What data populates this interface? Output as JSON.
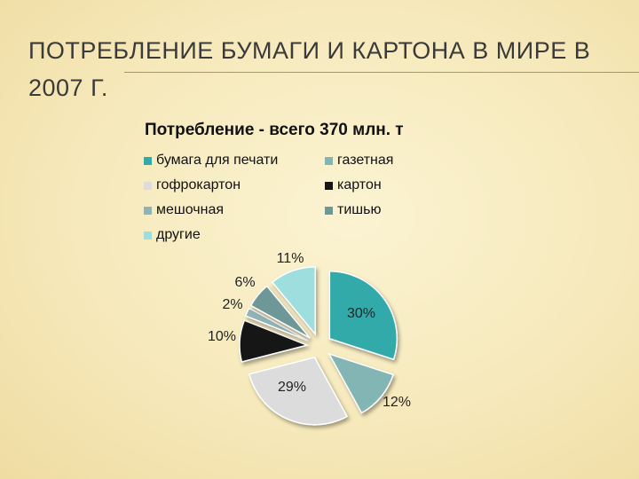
{
  "slide": {
    "title": "ПОТРЕБЛЕНИЕ БУМАГИ И КАРТОНА В МИРЕ В 2007 Г."
  },
  "chart_data": {
    "type": "pie",
    "title": "Потребление - всего 370 млн. т",
    "legend_position": "top",
    "series": [
      {
        "name": "бумага для печати",
        "value": 30,
        "label": "30%",
        "color": "#32aaaa"
      },
      {
        "name": "газетная",
        "value": 12,
        "label": "12%",
        "color": "#84b5b5"
      },
      {
        "name": "гофрокартон",
        "value": 29,
        "label": "29%",
        "color": "#dcdcdc"
      },
      {
        "name": "картон",
        "value": 10,
        "label": "10%",
        "color": "#161616"
      },
      {
        "name": "мешочная",
        "value": 2,
        "label": "2%",
        "color": "#8fb3b6"
      },
      {
        "name": "тишью",
        "value": 6,
        "label": "6%",
        "color": "#6e9898"
      },
      {
        "name": "другие",
        "value": 11,
        "label": "11%",
        "color": "#9fdede"
      }
    ]
  }
}
